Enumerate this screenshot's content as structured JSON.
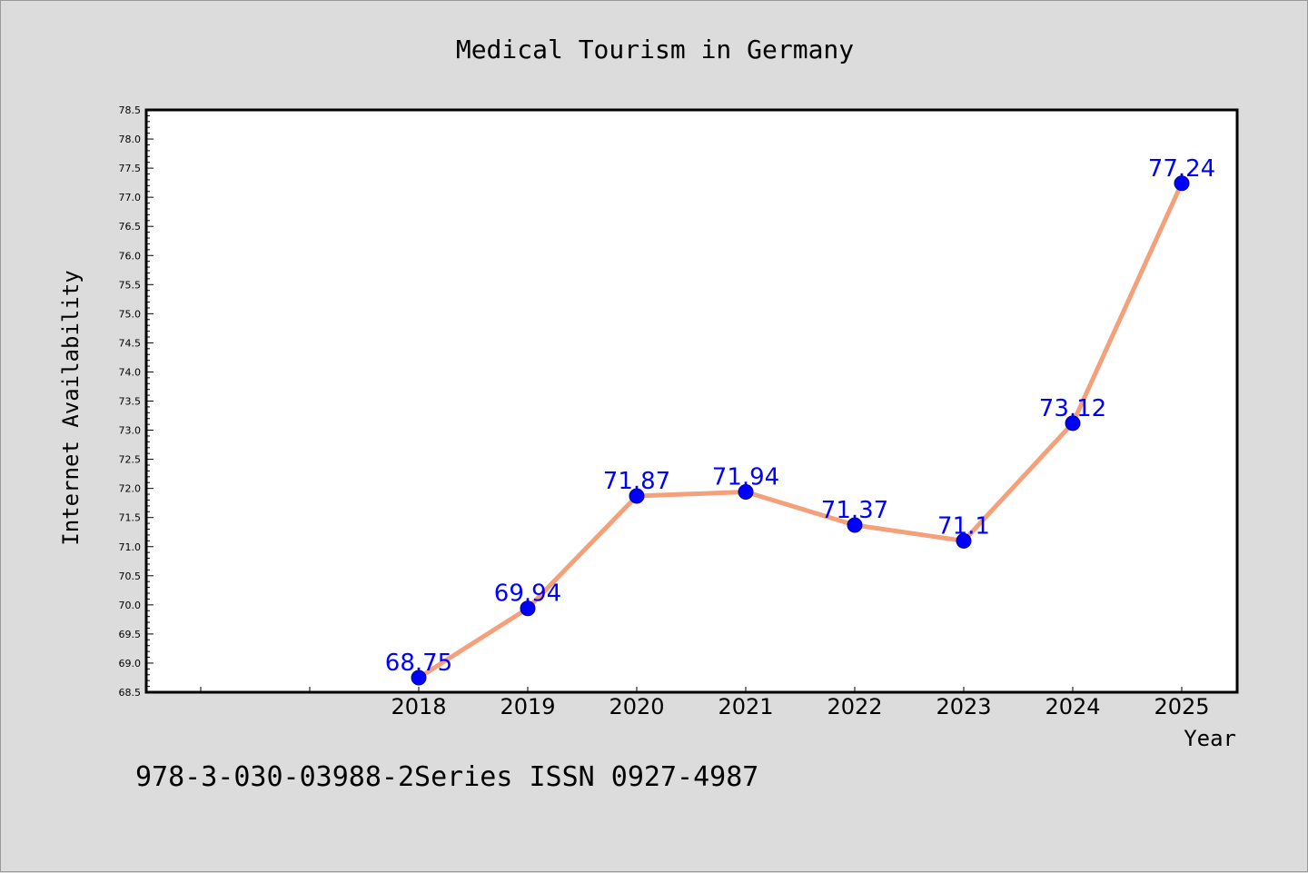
{
  "chart_data": {
    "type": "line",
    "title": "Medical Tourism in Germany",
    "xlabel": "Year",
    "ylabel": "Internet Availability",
    "categories": [
      "2018",
      "2019",
      "2020",
      "2021",
      "2022",
      "2023",
      "2024",
      "2025"
    ],
    "series": [
      {
        "values": [
          68.75,
          69.94,
          71.87,
          71.94,
          71.37,
          71.1,
          73.12,
          77.24
        ],
        "data_labels": [
          "68.75",
          "69.94",
          "71.87",
          "71.94",
          "71.37",
          "71.1",
          "73.12",
          "77.24"
        ]
      }
    ],
    "ylim": [
      68.5,
      78.5
    ],
    "y_major_step": 0.5,
    "y_tick_labels": [
      "68.5",
      "69.0",
      "69.5",
      "70.0",
      "70.5",
      "71.0",
      "71.5",
      "72.0",
      "72.5",
      "73.0",
      "73.5",
      "74.0",
      "74.5",
      "75.0",
      "75.5",
      "76.0",
      "76.5",
      "77.0",
      "77.5",
      "78.0",
      "78.5"
    ],
    "grid": false,
    "legend": "none",
    "colors": {
      "line": "#f4a07a",
      "marker": "#0000ff",
      "data_label": "#0000ff",
      "background": "#dcdcdc",
      "plot_background": "#ffffff"
    }
  },
  "footnote": "978-3-030-03988-2Series ISSN 0927-4987"
}
